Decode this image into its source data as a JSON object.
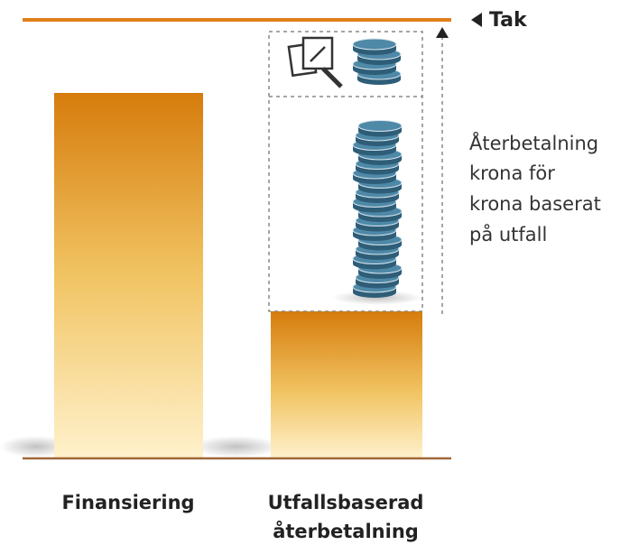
{
  "cap_label": "Tak",
  "side_note": {
    "lines": [
      "Återbetalning",
      "krona för",
      "krona baserat",
      "på utfall"
    ]
  },
  "bars": [
    {
      "label_lines": [
        "Finansiering"
      ]
    },
    {
      "label_lines": [
        "Utfallsbaserad",
        "återbetalning"
      ]
    }
  ]
}
